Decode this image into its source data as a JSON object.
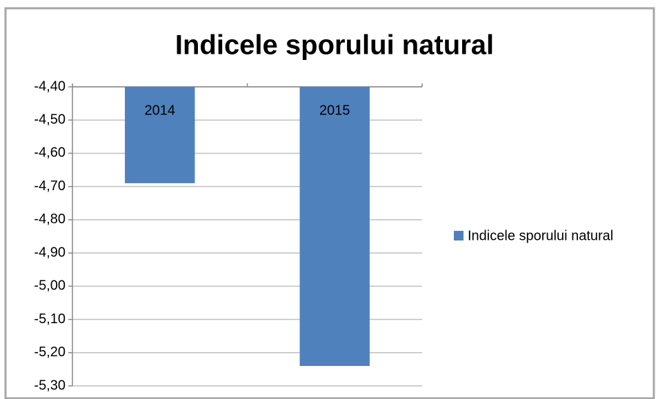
{
  "chart_data": {
    "type": "bar",
    "title": "Indicele sporului natural",
    "categories": [
      "2014",
      "2015"
    ],
    "series": [
      {
        "name": "Indicele sporului natural",
        "color": "#4f81bd",
        "values": [
          -4.69,
          -5.24
        ]
      }
    ],
    "ylim": [
      -5.3,
      -4.4
    ],
    "yticks": [
      {
        "value": -4.4,
        "label": "-4,40"
      },
      {
        "value": -4.5,
        "label": "-4,50"
      },
      {
        "value": -4.6,
        "label": "-4,60"
      },
      {
        "value": -4.7,
        "label": "-4,70"
      },
      {
        "value": -4.8,
        "label": "-4,80"
      },
      {
        "value": -4.9,
        "label": "-4,90"
      },
      {
        "value": -5.0,
        "label": "-5,00"
      },
      {
        "value": -5.1,
        "label": "-5,10"
      },
      {
        "value": -5.2,
        "label": "-5,20"
      },
      {
        "value": -5.3,
        "label": "-5,30"
      }
    ],
    "grid": true,
    "legend": "right"
  }
}
